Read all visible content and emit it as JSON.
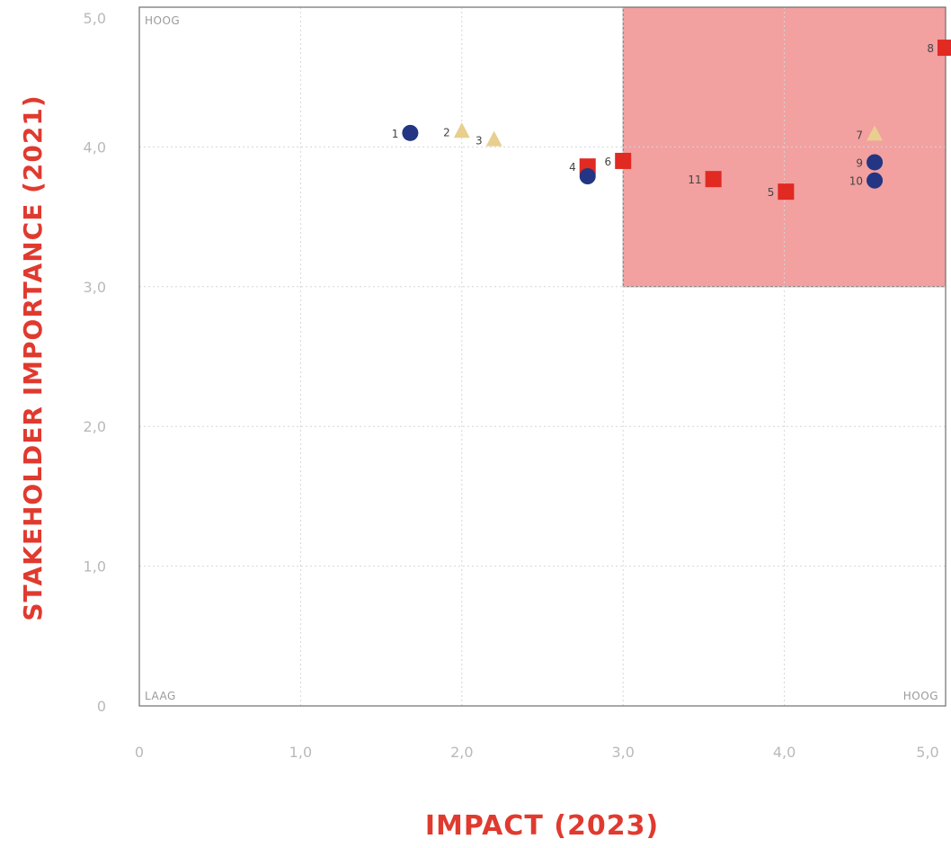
{
  "chart_data": {
    "type": "scatter",
    "xlabel": "IMPACT (2023)",
    "ylabel": "STAKEHOLDER IMPORTANCE (2021)",
    "xlim": [
      0,
      5.0
    ],
    "ylim": [
      0,
      5.0
    ],
    "x_ticks": [
      0,
      1.0,
      2.0,
      3.0,
      4.0,
      5.0
    ],
    "y_ticks": [
      0,
      1.0,
      2.0,
      3.0,
      4.0,
      5.0
    ],
    "x_tick_labels": [
      "0",
      "1,0",
      "2,0",
      "3,0",
      "4,0",
      "5,0"
    ],
    "y_tick_labels": [
      "0",
      "1,0",
      "2,0",
      "3,0",
      "4,0",
      "5,0"
    ],
    "grid": true,
    "corner_labels": {
      "top_left": "HOOG",
      "bottom_left": "LAAG",
      "bottom_right": "HOOG"
    },
    "highlight_region": {
      "x": [
        3.0,
        5.0
      ],
      "y": [
        3.0,
        5.0
      ],
      "color": "#f2a0a0"
    },
    "marker_colors": {
      "circle": "#233583",
      "triangle": "#e8cf8e",
      "square": "#e02a22"
    },
    "points": [
      {
        "label": "1",
        "x": 1.68,
        "y": 4.1,
        "marker": "circle"
      },
      {
        "label": "2",
        "x": 2.0,
        "y": 4.11,
        "marker": "triangle"
      },
      {
        "label": "3",
        "x": 2.2,
        "y": 4.05,
        "marker": "triangle"
      },
      {
        "label": "4",
        "x": 2.78,
        "y": 3.86,
        "marker": "square"
      },
      {
        "label": "",
        "x": 2.78,
        "y": 3.79,
        "marker": "circle"
      },
      {
        "label": "6",
        "x": 3.0,
        "y": 3.9,
        "marker": "square"
      },
      {
        "label": "11",
        "x": 3.56,
        "y": 3.77,
        "marker": "square"
      },
      {
        "label": "5",
        "x": 4.01,
        "y": 3.68,
        "marker": "square"
      },
      {
        "label": "7",
        "x": 4.56,
        "y": 4.09,
        "marker": "triangle"
      },
      {
        "label": "9",
        "x": 4.56,
        "y": 3.89,
        "marker": "circle"
      },
      {
        "label": "10",
        "x": 4.56,
        "y": 3.76,
        "marker": "circle"
      },
      {
        "label": "8",
        "x": 5.0,
        "y": 4.71,
        "marker": "square"
      }
    ]
  }
}
